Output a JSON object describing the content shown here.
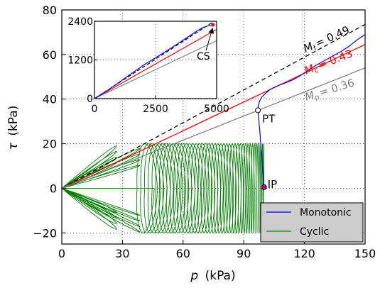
{
  "chart_data": [
    {
      "type": "line",
      "xlabel_var": "p",
      "xlabel_unit": "(kPa)",
      "ylabel_var": "τ",
      "ylabel_unit": "(kPa)",
      "xlim": [
        0,
        150
      ],
      "ylim": [
        -25,
        80
      ],
      "xticks": [
        0,
        30,
        60,
        90,
        120,
        150
      ],
      "yticks": [
        -20,
        0,
        20,
        40,
        60,
        80
      ],
      "ytick_labels": [
        "−20",
        "0",
        "20",
        "40",
        "60",
        "80"
      ],
      "grid": true,
      "grid_style": "dotted",
      "legend": {
        "placement": "bottom-right",
        "entries": [
          {
            "label": "Monotonic",
            "color": "#0000ff"
          },
          {
            "label": "Cyclic",
            "color": "#007f00"
          }
        ]
      },
      "reference_lines": [
        {
          "label_sub": "f",
          "label_value": "= 0.49",
          "slope": 0.49,
          "color": "#000000",
          "dashed": true
        },
        {
          "label_sub": "c",
          "label_value": "= 0.43",
          "slope": 0.43,
          "color": "#ff0000",
          "dashed": false
        },
        {
          "label_sub": "p",
          "label_value": "= 0.36",
          "slope": 0.36,
          "color": "#808080",
          "dashed": false
        }
      ],
      "label_letter": "M",
      "annotations": [
        {
          "text": "PT",
          "x": 97,
          "y": 35
        },
        {
          "text": "IP",
          "x": 100,
          "y": 0.5
        }
      ],
      "monotonic": {
        "x": [
          100,
          99.6,
          99.2,
          98.8,
          98.4,
          98.0,
          97.6,
          97.3,
          97.1,
          97.0,
          97.2,
          97.8,
          98.8,
          100.4,
          103,
          106,
          110,
          114,
          118,
          122,
          126,
          130,
          134,
          138,
          142,
          146,
          150
        ],
        "y": [
          0.5,
          5,
          10,
          15,
          20,
          25,
          29,
          32,
          34,
          35,
          37,
          39,
          40.8,
          42,
          43.8,
          45.5,
          47.3,
          49,
          50.8,
          52.8,
          54.8,
          57,
          59.5,
          61.8,
          64,
          66.4,
          68.5
        ]
      },
      "cyclic": {
        "tau_amplitude": 20,
        "p_start": 100,
        "p_end": 41,
        "cycles": 42
      },
      "inset": {
        "xlim": [
          0,
          5000
        ],
        "ylim": [
          0,
          2400
        ],
        "xticks": [
          0,
          2500,
          5000
        ],
        "yticks": [
          0,
          1200,
          2400
        ],
        "annotation": "CS",
        "monotonic": {
          "x": [
            0,
            500,
            1000,
            1500,
            2000,
            2500,
            3000,
            3500,
            4000,
            4400,
            4700,
            4850
          ],
          "y": [
            0,
            260,
            520,
            760,
            1010,
            1260,
            1520,
            1770,
            2000,
            2170,
            2260,
            2290
          ]
        }
      }
    }
  ]
}
